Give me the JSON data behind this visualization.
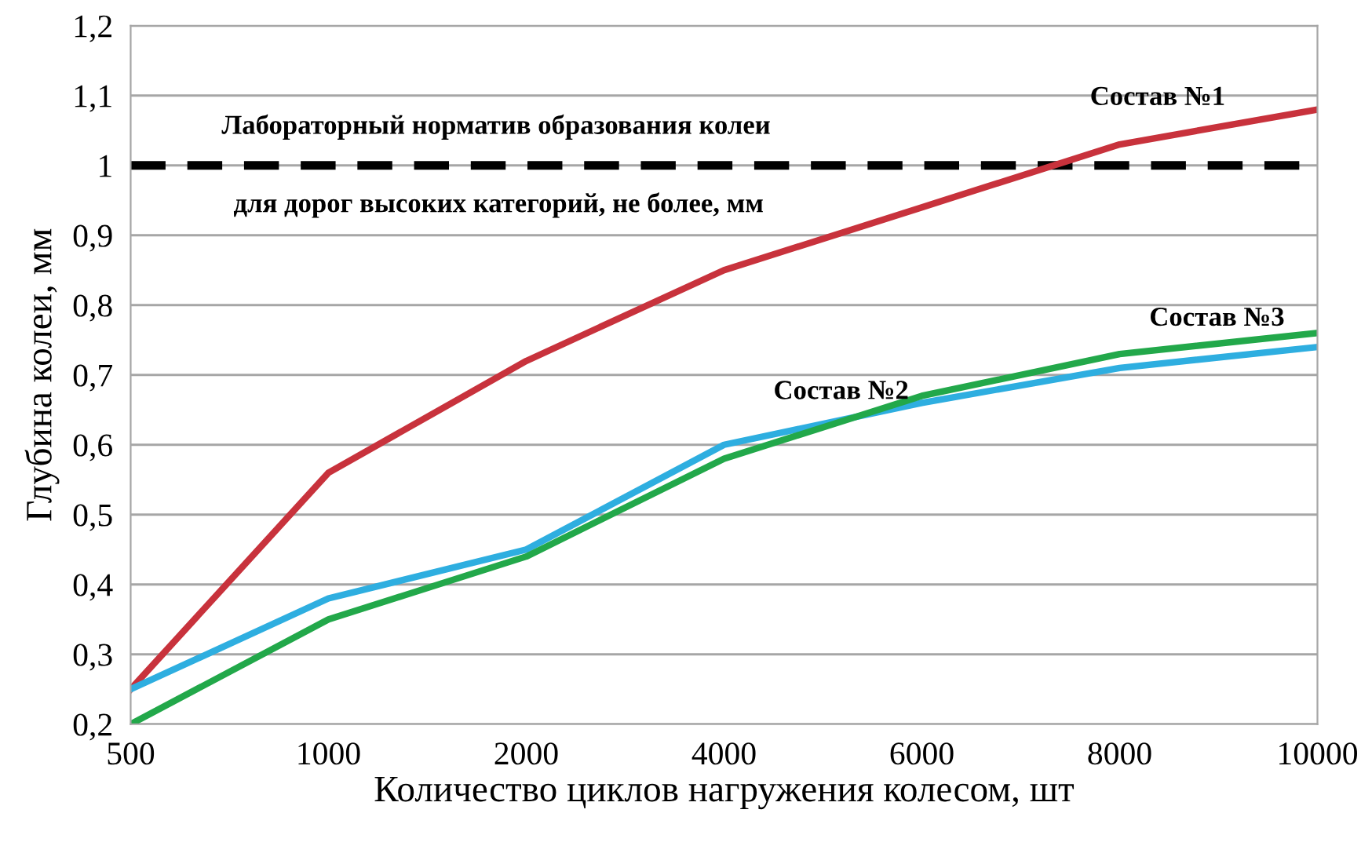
{
  "chart_data": {
    "type": "line",
    "xlabel": "Количество циклов нагружения колесом, шт",
    "ylabel": "Глубина колеи, мм",
    "categories": [
      "500",
      "1000",
      "2000",
      "4000",
      "6000",
      "8000",
      "10000"
    ],
    "series": [
      {
        "name": "Состав №1",
        "color": "#c8323c",
        "values": [
          0.25,
          0.56,
          0.72,
          0.85,
          0.94,
          1.03,
          1.08
        ]
      },
      {
        "name": "Состав №2",
        "color": "#2eaee0",
        "values": [
          0.25,
          0.38,
          0.45,
          0.6,
          0.66,
          0.71,
          0.74
        ]
      },
      {
        "name": "Состав №3",
        "color": "#22a84a",
        "values": [
          0.2,
          0.35,
          0.44,
          0.58,
          0.67,
          0.73,
          0.76
        ]
      }
    ],
    "ylim": [
      0.2,
      1.2
    ],
    "yticks": [
      {
        "value": 0.2,
        "label": "0,2"
      },
      {
        "value": 0.3,
        "label": "0,3"
      },
      {
        "value": 0.4,
        "label": "0,4"
      },
      {
        "value": 0.5,
        "label": "0,5"
      },
      {
        "value": 0.6,
        "label": "0,6"
      },
      {
        "value": 0.7,
        "label": "0,7"
      },
      {
        "value": 0.8,
        "label": "0,8"
      },
      {
        "value": 0.9,
        "label": "0,9"
      },
      1,
      {
        "value": 1.1,
        "label": "1,1"
      },
      {
        "value": 1.2,
        "label": "1,2"
      }
    ],
    "ref_lines": [
      {
        "axis": "y",
        "value": 1.0,
        "color": "#000000",
        "line_style": "dashed"
      }
    ],
    "annotations": [
      "Лабораторный норматив образования колеи",
      "для дорог высоких категорий, не более, мм"
    ],
    "grid": "y",
    "marker": "none",
    "line_style": "solid"
  }
}
